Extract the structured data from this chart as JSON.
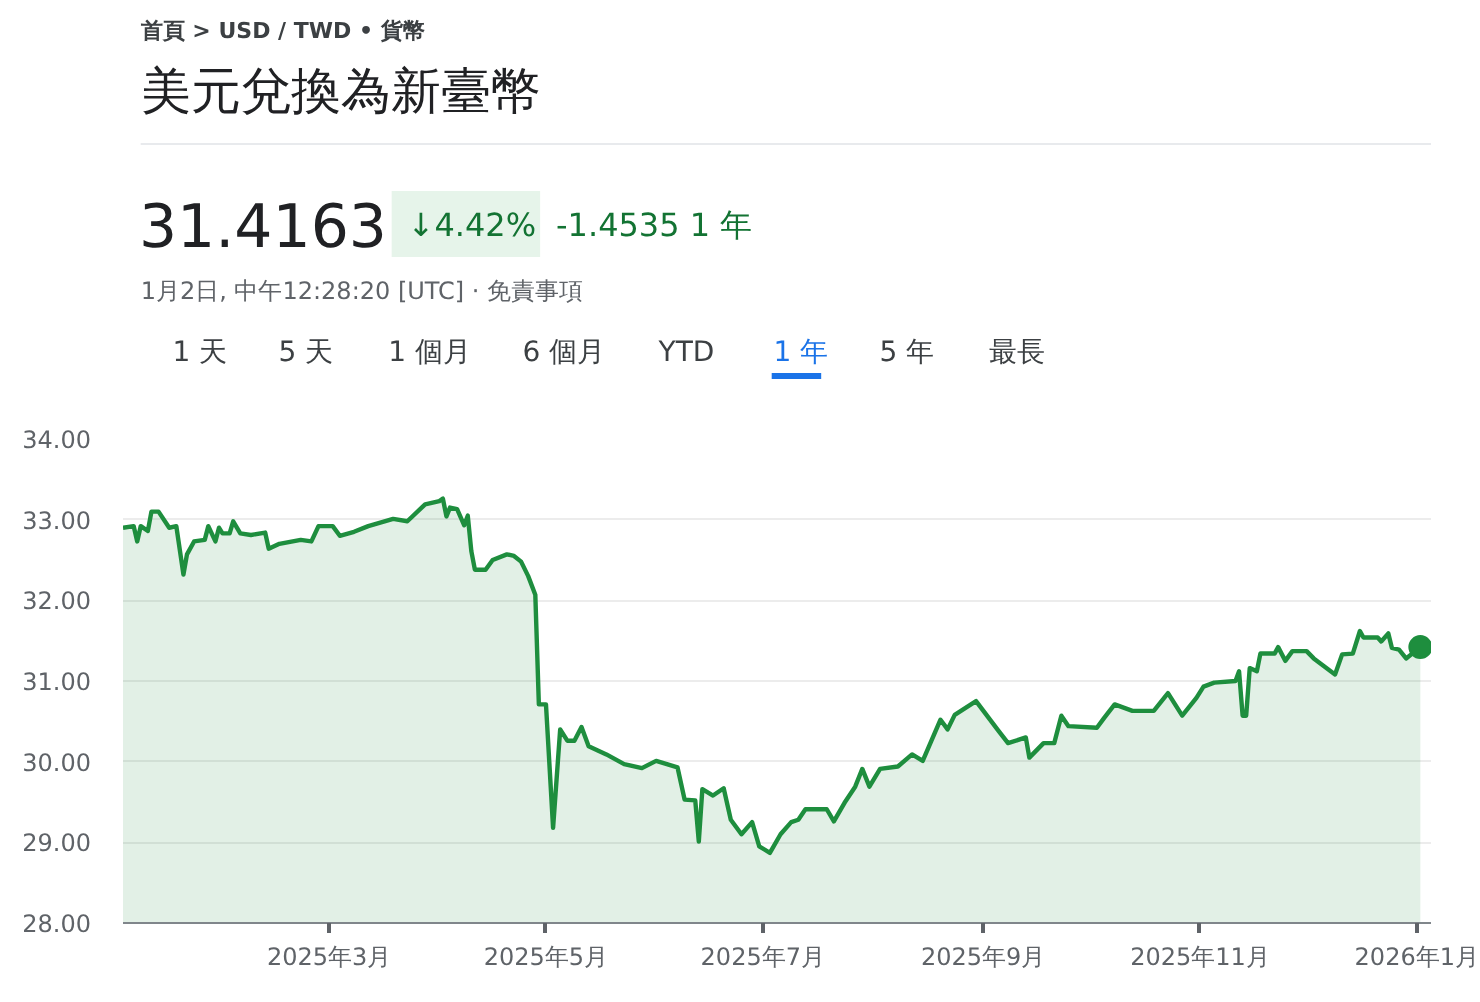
{
  "chart_data": {
    "type": "area",
    "title": "美元兌換為新臺幣",
    "subtitle": "31.4163",
    "annotations": [
      "首頁 > USD / TWD • 貨幣",
      "↓4.42%",
      "-1.4535 1 年",
      "1月2日, 中午12:28:20 [UTC] · 免責事項",
      "1 天",
      "5 天",
      "1 個月",
      "6 個月",
      "YTD",
      "1 年",
      "5 年",
      "最長"
    ],
    "x": [
      "2025-01-02",
      "2025-01-05",
      "2025-01-06",
      "2025-01-07",
      "2025-01-09",
      "2025-01-10",
      "2025-01-12",
      "2025-01-15",
      "2025-01-17",
      "2025-01-19",
      "2025-01-20",
      "2025-01-22",
      "2025-01-25",
      "2025-01-26",
      "2025-01-28",
      "2025-01-29",
      "2025-01-30",
      "2025-02-01",
      "2025-02-02",
      "2025-02-04",
      "2025-02-07",
      "2025-02-11",
      "2025-02-12",
      "2025-02-15",
      "2025-02-21",
      "2025-02-24",
      "2025-02-26",
      "2025-03-02",
      "2025-03-04",
      "2025-03-08",
      "2025-03-12",
      "2025-03-19",
      "2025-03-23",
      "2025-03-28",
      "2025-04-01",
      "2025-04-02",
      "2025-04-03",
      "2025-04-04",
      "2025-04-06",
      "2025-04-08",
      "2025-04-09",
      "2025-04-10",
      "2025-04-11",
      "2025-04-14",
      "2025-04-16",
      "2025-04-20",
      "2025-04-22",
      "2025-04-24",
      "2025-04-26",
      "2025-04-28",
      "2025-04-29",
      "2025-05-01",
      "2025-05-03",
      "2025-05-05",
      "2025-05-07",
      "2025-05-09",
      "2025-05-11",
      "2025-05-13",
      "2025-05-18",
      "2025-05-23",
      "2025-05-28",
      "2025-06-01",
      "2025-06-07",
      "2025-06-09",
      "2025-06-12",
      "2025-06-13",
      "2025-06-14",
      "2025-06-17",
      "2025-06-20",
      "2025-06-22",
      "2025-06-25",
      "2025-06-28",
      "2025-06-30",
      "2025-07-03",
      "2025-07-06",
      "2025-07-09",
      "2025-07-11",
      "2025-07-13",
      "2025-07-19",
      "2025-07-21",
      "2025-07-24",
      "2025-07-27",
      "2025-07-29",
      "2025-07-31",
      "2025-08-03",
      "2025-08-08",
      "2025-08-12",
      "2025-08-15",
      "2025-08-20",
      "2025-08-22",
      "2025-08-24",
      "2025-08-30",
      "2025-09-05",
      "2025-09-08",
      "2025-09-13",
      "2025-09-14",
      "2025-09-18",
      "2025-09-21",
      "2025-09-23",
      "2025-09-25",
      "2025-10-03",
      "2025-10-05",
      "2025-10-08",
      "2025-10-13",
      "2025-10-19",
      "2025-10-23",
      "2025-10-27",
      "2025-10-31",
      "2025-11-02",
      "2025-11-05",
      "2025-11-11",
      "2025-11-12",
      "2025-11-13",
      "2025-11-14",
      "2025-11-15",
      "2025-11-17",
      "2025-11-18",
      "2025-11-22",
      "2025-11-23",
      "2025-11-25",
      "2025-11-27",
      "2025-12-01",
      "2025-12-03",
      "2025-12-06",
      "2025-12-09",
      "2025-12-11",
      "2025-12-14",
      "2025-12-16",
      "2025-12-17",
      "2025-12-21",
      "2025-12-22",
      "2025-12-24",
      "2025-12-25",
      "2025-12-27",
      "2025-12-29",
      "2026-01-02"
    ],
    "series": [
      {
        "color": "#1e8e3e",
        "values": [
          32.9,
          32.92,
          32.73,
          32.92,
          32.86,
          33.1,
          33.1,
          32.9,
          32.92,
          32.32,
          32.57,
          32.73,
          32.75,
          32.92,
          32.73,
          32.9,
          32.83,
          32.83,
          32.98,
          32.83,
          32.81,
          32.84,
          32.64,
          32.7,
          32.75,
          32.73,
          32.92,
          32.92,
          32.8,
          32.85,
          32.92,
          33.01,
          32.98,
          33.19,
          33.23,
          33.26,
          33.04,
          33.15,
          33.13,
          32.93,
          33.05,
          32.61,
          32.38,
          32.38,
          32.5,
          32.57,
          32.55,
          32.48,
          32.3,
          32.07,
          30.71,
          30.71,
          29.18,
          30.4,
          30.26,
          30.26,
          30.43,
          30.19,
          30.09,
          29.97,
          29.92,
          30.01,
          29.93,
          29.53,
          29.52,
          29.01,
          29.66,
          29.58,
          29.67,
          29.28,
          29.1,
          29.25,
          28.95,
          28.87,
          29.1,
          29.25,
          29.28,
          29.41,
          29.41,
          29.26,
          29.49,
          29.69,
          29.91,
          29.69,
          29.91,
          29.94,
          30.09,
          30.01,
          30.52,
          30.4,
          30.58,
          30.75,
          30.4,
          30.23,
          30.3,
          30.05,
          30.23,
          30.23,
          30.57,
          30.44,
          30.42,
          30.54,
          30.71,
          30.63,
          30.63,
          30.85,
          30.57,
          30.79,
          30.93,
          30.98,
          31.0,
          31.12,
          30.57,
          30.57,
          31.16,
          31.12,
          31.34,
          31.34,
          31.42,
          31.25,
          31.37,
          31.37,
          31.28,
          31.18,
          31.08,
          31.33,
          31.34,
          31.62,
          31.54,
          31.54,
          31.49,
          31.59,
          31.41,
          31.39,
          31.28,
          31.42
        ]
      },
      {
        "type": "scatter",
        "color": "#1e8e3e",
        "x": [
          "2026-01-02"
        ],
        "values": [
          31.42
        ]
      }
    ],
    "xlim": [
      "2025-01-02",
      "2026-01-05"
    ],
    "xticks": [
      {
        "value": "2025-03-01",
        "label": "2025年3月"
      },
      {
        "value": "2025-05-01",
        "label": "2025年5月"
      },
      {
        "value": "2025-07-01",
        "label": "2025年7月"
      },
      {
        "value": "2025-09-01",
        "label": "2025年9月"
      },
      {
        "value": "2025-11-01",
        "label": "2025年11月"
      },
      {
        "value": "2026-01-01",
        "label": "2026年1月"
      }
    ],
    "ylim": [
      28,
      34
    ],
    "yticks": [
      {
        "value": 28,
        "label": "28.00"
      },
      {
        "value": 29,
        "label": "29.00"
      },
      {
        "value": 30,
        "label": "30.00"
      },
      {
        "value": 31,
        "label": "31.00"
      },
      {
        "value": 32,
        "label": "32.00"
      },
      {
        "value": 33,
        "label": "33.00"
      },
      {
        "value": 34,
        "label": "34.00"
      }
    ],
    "grid": "y"
  }
}
